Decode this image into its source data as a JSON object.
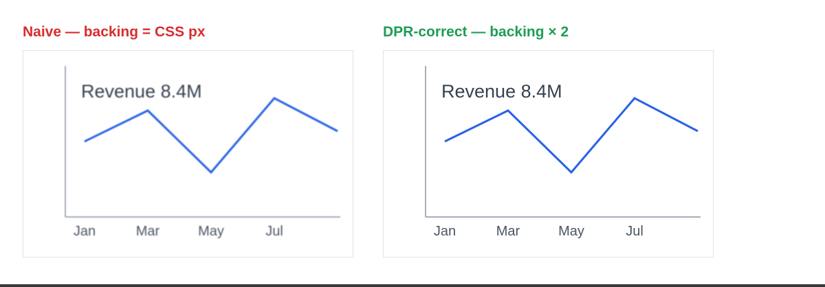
{
  "colors": {
    "naive_title": "#d92d2d",
    "dpr_title": "#1f9d55",
    "line": "#2a62e6",
    "axis": "#8a93a3",
    "label_text": "#374151",
    "tick_text": "#4b5563"
  },
  "panels": [
    {
      "id": "naive",
      "title": "Naive — backing = CSS px",
      "label": "Revenue 8.4M"
    },
    {
      "id": "dpr",
      "title": "DPR-correct — backing × 2",
      "label": "Revenue 8.4M"
    }
  ],
  "chart_data": [
    {
      "type": "line",
      "title": "Naive — backing = CSS px",
      "annotation": "Revenue 8.4M",
      "categories": [
        "Jan",
        "Mar",
        "May",
        "Jul"
      ],
      "x": [
        0,
        1,
        2,
        3,
        4
      ],
      "y": [
        0.4,
        0.7,
        0.1,
        0.82,
        0.5
      ],
      "series": [
        {
          "values": [
            0.4,
            0.7,
            0.1,
            0.82,
            0.5
          ]
        }
      ],
      "ylim": [
        0,
        1
      ],
      "grid": false,
      "legend": "none"
    },
    {
      "type": "line",
      "title": "DPR-correct — backing × 2",
      "annotation": "Revenue 8.4M",
      "categories": [
        "Jan",
        "Mar",
        "May",
        "Jul"
      ],
      "x": [
        0,
        1,
        2,
        3,
        4
      ],
      "y": [
        0.4,
        0.7,
        0.1,
        0.82,
        0.5
      ],
      "series": [
        {
          "values": [
            0.4,
            0.7,
            0.1,
            0.82,
            0.5
          ]
        }
      ],
      "ylim": [
        0,
        1
      ],
      "grid": false,
      "legend": "none"
    }
  ]
}
